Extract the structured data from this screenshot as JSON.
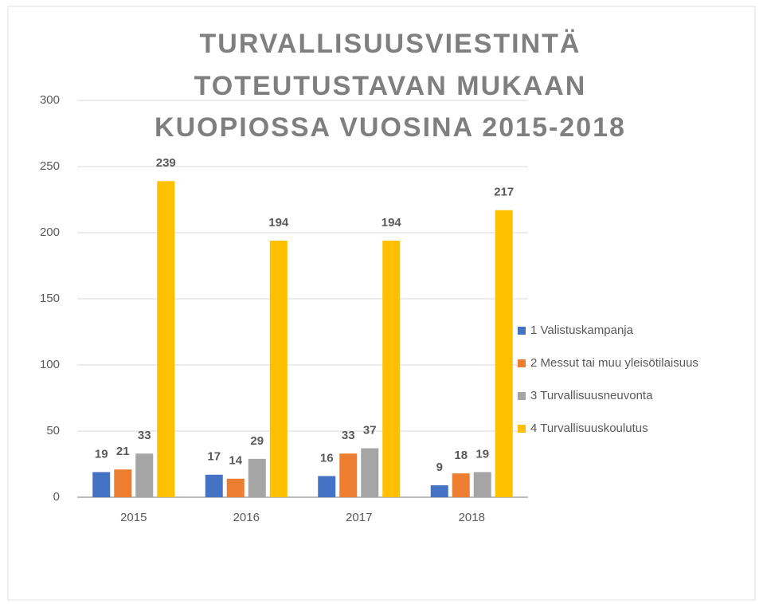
{
  "chart_data": {
    "type": "bar",
    "title": [
      "TURVALLISUUSVIESTINTÄ",
      "TOTEUTUSTAVAN MUKAAN",
      "KUOPIOSSA VUOSINA 2015-2018"
    ],
    "categories": [
      "2015",
      "2016",
      "2017",
      "2018"
    ],
    "series": [
      {
        "name": "1 Valistuskampanja",
        "color": "#4472c4",
        "values": [
          19,
          17,
          16,
          9
        ]
      },
      {
        "name": "2 Messut tai muu yleisötilaisuus",
        "color": "#ed7d31",
        "values": [
          21,
          14,
          33,
          18
        ]
      },
      {
        "name": "3 Turvallisuusneuvonta",
        "color": "#a5a5a5",
        "values": [
          33,
          29,
          37,
          19
        ]
      },
      {
        "name": "4 Turvallisuuskoulutus",
        "color": "#ffc000",
        "values": [
          239,
          194,
          194,
          217
        ]
      }
    ],
    "ylim": [
      0,
      300
    ],
    "yticks": [
      0,
      50,
      100,
      150,
      200,
      250,
      300
    ],
    "grid": true,
    "legend": "right"
  }
}
